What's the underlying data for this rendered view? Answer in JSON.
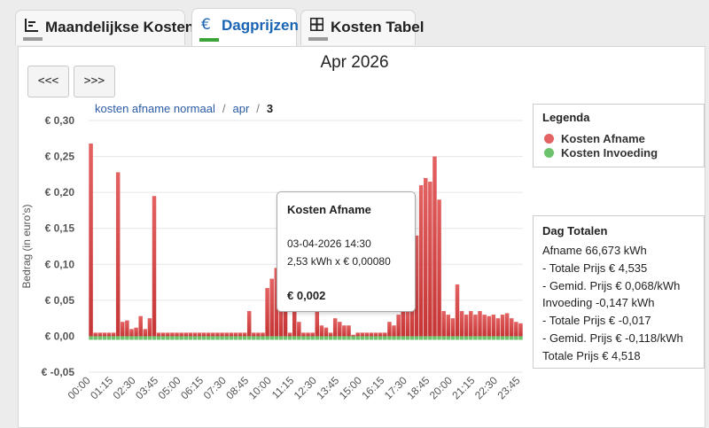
{
  "tabs": [
    {
      "icon": "bar-chart-icon",
      "glyph": "☰",
      "label": "Maandelijkse Kosten",
      "active": false
    },
    {
      "icon": "euro-icon",
      "glyph": "€",
      "label": "Dagprijzen",
      "active": true
    },
    {
      "icon": "table-icon",
      "glyph": "⊞",
      "label": "Kosten Tabel",
      "active": false
    }
  ],
  "header": {
    "month_title": "Apr 2026",
    "prev_label": "<<<",
    "next_label": ">>>"
  },
  "breadcrumb": {
    "level1": "kosten afname normaal",
    "sep1": "/",
    "level2": "apr",
    "sep2": "/",
    "current": "3"
  },
  "legend": {
    "title": "Legenda",
    "afname": "Kosten Afname",
    "invoeding": "Kosten Invoeding"
  },
  "totals": {
    "title": "Dag Totalen",
    "lines": [
      "Afname 66,673 kWh",
      "- Totale Prijs € 4,535",
      "- Gemid. Prijs € 0,068/kWh",
      "Invoeding -0,147 kWh",
      "- Totale Prijs € -0,017",
      "- Gemid. Prijs € -0,118/kWh",
      "Totale Prijs € 4,518"
    ]
  },
  "tooltip": {
    "title": "Kosten Afname",
    "datetime": "03-04-2026 14:30",
    "calc": "2,53 kWh x € 0,00080",
    "total": "€ 0,002"
  },
  "colors": {
    "afname": "#e36262",
    "afname_dark": "#c63535",
    "invoeding": "#6cc36c",
    "accent": "#1a64b4"
  },
  "chart_data": {
    "type": "bar",
    "ylabel": "Bedrag (in euro's)",
    "ylim": [
      -0.05,
      0.3
    ],
    "yticks": [
      -0.05,
      0,
      0.05,
      0.1,
      0.15,
      0.2,
      0.25,
      0.3
    ],
    "ytick_labels": [
      "€ -0,05",
      "€ 0,00",
      "€ 0,05",
      "€ 0,10",
      "€ 0,15",
      "€ 0,20",
      "€ 0,25",
      "€ 0,30"
    ],
    "xtick_labels": [
      "00:00",
      "01:15",
      "02:30",
      "03:45",
      "05:00",
      "06:15",
      "07:30",
      "08:45",
      "10:00",
      "11:15",
      "12:30",
      "13:45",
      "15:00",
      "16:15",
      "17:30",
      "18:45",
      "20:00",
      "21:15",
      "22:30",
      "23:45"
    ],
    "interval_minutes": 15,
    "grid": true,
    "legend_position": "right",
    "series": [
      {
        "name": "Kosten Afname",
        "values": [
          0.268,
          0.005,
          0.005,
          0.005,
          0.005,
          0.005,
          0.228,
          0.02,
          0.022,
          0.01,
          0.012,
          0.028,
          0.01,
          0.025,
          0.195,
          0.005,
          0.005,
          0.005,
          0.005,
          0.005,
          0.005,
          0.005,
          0.005,
          0.005,
          0.005,
          0.005,
          0.005,
          0.005,
          0.005,
          0.005,
          0.005,
          0.005,
          0.005,
          0.005,
          0.005,
          0.035,
          0.005,
          0.005,
          0.005,
          0.067,
          0.005,
          0.005,
          0.025,
          0.005,
          0.005,
          0.215,
          0.005,
          0.005,
          0.005,
          0.005,
          0.005,
          0.005,
          0.005,
          0.075,
          0.005,
          0.005,
          0.005,
          0.005,
          0.005,
          0.005,
          0.005,
          0.005,
          0.02,
          0.005,
          0.005,
          0.005,
          0.08,
          0.005,
          0.005,
          0.005,
          0.005,
          0.005,
          0.005,
          0.005,
          0.005,
          0.005,
          0.005,
          0.005,
          0.005,
          0.005,
          0.005,
          0.015,
          0.005,
          0.005,
          0.005,
          0.005,
          0.005,
          0.005,
          0.005,
          0.005,
          0.005,
          0.005,
          0.005,
          0.005,
          0.005,
          0.005
        ],
        "x": [
          "00:00",
          "00:15",
          "00:30",
          "00:45",
          "01:00",
          "01:15",
          "01:30",
          "01:45",
          "02:00",
          "02:15",
          "02:30",
          "02:45",
          "03:00",
          "03:15",
          "03:30",
          "03:45",
          "04:00",
          "04:15",
          "04:30",
          "04:45",
          "05:00",
          "05:15",
          "05:30",
          "05:45",
          "06:00",
          "06:15",
          "06:30",
          "06:45",
          "07:00",
          "07:15",
          "07:30",
          "07:45",
          "08:00",
          "08:15",
          "08:30",
          "08:45",
          "09:00",
          "09:15",
          "09:30",
          "09:45",
          "10:00",
          "10:15",
          "10:30",
          "10:45",
          "11:00",
          "11:15",
          "11:30",
          "11:45",
          "12:00",
          "12:15",
          "12:30",
          "12:45",
          "13:00",
          "13:15",
          "13:30",
          "13:45",
          "14:00",
          "14:15",
          "14:30",
          "14:45",
          "15:00",
          "15:15",
          "15:30",
          "15:45",
          "16:00",
          "16:15",
          "16:30",
          "16:45",
          "17:00",
          "17:15",
          "17:30",
          "17:45",
          "18:00",
          "18:15",
          "18:30",
          "18:45",
          "19:00",
          "19:15",
          "19:30",
          "19:45",
          "20:00",
          "20:15",
          "20:30",
          "20:45",
          "21:00",
          "21:15",
          "21:30",
          "21:45",
          "22:00",
          "22:15",
          "22:30",
          "22:45",
          "23:00",
          "23:15",
          "23:30",
          "23:45"
        ],
        "overrides": {
          "10:00": 0.08,
          "10:15": 0.095,
          "10:30": 0.06,
          "10:45": 0.115,
          "11:00": 0.005,
          "11:15": 0.075,
          "11:30": 0.02,
          "11:45": 0.005,
          "12:00": 0.005,
          "12:15": 0.005,
          "12:30": 0.04,
          "12:45": 0.015,
          "13:00": 0.012,
          "13:15": 0.005,
          "13:30": 0.025,
          "13:45": 0.02,
          "14:00": 0.015,
          "14:15": 0.015,
          "14:30": 0.002,
          "14:45": 0.005,
          "15:00": 0.005,
          "15:15": 0.005,
          "15:30": 0.005,
          "15:45": 0.005,
          "16:00": 0.005,
          "16:15": 0.005,
          "16:30": 0.02,
          "16:45": 0.015,
          "17:00": 0.03,
          "17:15": 0.07,
          "17:30": 0.035,
          "17:45": 0.07,
          "18:00": 0.14,
          "18:15": 0.21,
          "18:30": 0.22,
          "18:45": 0.215,
          "19:00": 0.25,
          "19:15": 0.19,
          "19:30": 0.035,
          "19:45": 0.03,
          "20:00": 0.025,
          "20:15": 0.072,
          "20:30": 0.035,
          "20:45": 0.03,
          "21:00": 0.035,
          "21:15": 0.03,
          "21:30": 0.035,
          "21:45": 0.03,
          "22:00": 0.028,
          "22:15": 0.03,
          "22:30": 0.025,
          "22:45": 0.03,
          "23:00": 0.032,
          "23:15": 0.025,
          "23:30": 0.02,
          "23:45": 0.018
        }
      },
      {
        "name": "Kosten Invoeding",
        "values_note": "",
        "constant": -0.005
      }
    ]
  }
}
